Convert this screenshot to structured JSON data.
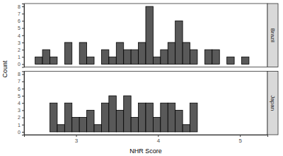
{
  "chart_data": {
    "type": "histogram",
    "x_label": "NHR Score",
    "y_label": "Count",
    "bins": [
      2.5,
      2.59,
      2.68,
      2.77,
      2.86,
      2.95,
      3.04,
      3.13,
      3.22,
      3.31,
      3.4,
      3.49,
      3.58,
      3.67,
      3.76,
      3.85,
      3.94,
      4.03,
      4.12,
      4.21,
      4.3,
      4.39,
      4.48,
      4.57,
      4.66,
      4.75,
      4.84,
      4.93,
      5.02,
      5.11,
      5.2
    ],
    "series": [
      {
        "name": "Brazil",
        "values": [
          1,
          2,
          1,
          0,
          3,
          0,
          3,
          1,
          0,
          2,
          1,
          3,
          2,
          2,
          3,
          8,
          1,
          2,
          3,
          6,
          3,
          2,
          0,
          2,
          2,
          0,
          1,
          0,
          1,
          0
        ]
      },
      {
        "name": "Japan",
        "values": [
          0,
          0,
          4,
          1,
          4,
          2,
          2,
          3,
          1,
          4,
          5,
          3,
          5,
          2,
          4,
          4,
          2,
          4,
          4,
          3,
          1,
          4,
          0,
          0,
          0,
          0,
          0,
          0,
          0,
          0
        ]
      }
    ],
    "color": "#595959",
    "xlim": [
      2.365,
      5.335
    ],
    "xticks": [
      3,
      4,
      5
    ],
    "ylim": [
      -0.4,
      8.4
    ],
    "yticks": [
      0,
      1,
      2,
      3,
      4,
      5,
      6,
      7,
      8
    ],
    "grid": false
  }
}
